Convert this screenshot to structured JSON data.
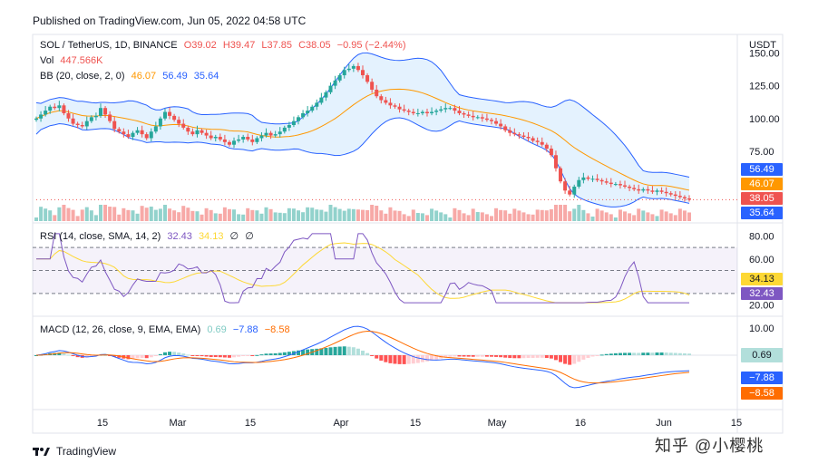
{
  "header": {
    "published": "Published on TradingView.com, Jun 05, 2022 04:58 UTC"
  },
  "legend": {
    "symbol": "SOL / TetherUS, 1D, BINANCE",
    "o": "O39.02",
    "h": "H39.47",
    "l": "L37.85",
    "c": "C38.05",
    "chg": "−0.95 (−2.44%)",
    "vol_label": "Vol",
    "vol_value": "447.566K",
    "bb_label": "BB (20, close, 2, 0)",
    "bb_basis": "46.07",
    "bb_upper": "56.49",
    "bb_lower": "35.64",
    "rsi_label": "RSI (14, close, SMA, 14, 2)",
    "rsi_value": "32.43",
    "rsi_ma": "34.13",
    "rsi_extra1": "∅",
    "rsi_extra2": "∅",
    "macd_label": "MACD (12, 26, close, 9, EMA, EMA)",
    "macd_hist": "0.69",
    "macd_line": "−7.88",
    "macd_signal": "−8.58"
  },
  "axis": {
    "currency": "USDT",
    "price_ticks": [
      "150.00",
      "125.00",
      "100.00",
      "75.00"
    ],
    "rsi_ticks": [
      "80.00",
      "60.00",
      "20.00"
    ],
    "macd_ticks": [
      "10.00"
    ],
    "time_ticks": [
      "15",
      "Mar",
      "15",
      "Apr",
      "15",
      "May",
      "16",
      "Jun",
      "15"
    ]
  },
  "price_tags": {
    "bb_upper": "56.49",
    "bb_basis": "46.07",
    "close": "38.05",
    "bb_lower": "35.64"
  },
  "rsi_tags": {
    "ma": "34.13",
    "rsi": "32.43"
  },
  "macd_tags": {
    "hist": "0.69",
    "macd": "−7.88",
    "signal": "−8.58"
  },
  "footer": {
    "brand": "TradingView"
  },
  "watermark": "知乎 @小樱桃",
  "colors": {
    "up": "#26a69a",
    "down": "#ef5350",
    "bb_band": "#2962ff",
    "bb_basis": "#ff9800",
    "rsi": "#7e57c2",
    "rsi_ma": "#fdd835",
    "macd": "#2962ff",
    "signal": "#ff6d00"
  },
  "chart_data": [
    {
      "type": "candlestick",
      "title": "SOL / TetherUS, 1D, BINANCE",
      "ylim": [
        30,
        160
      ],
      "x_labels": [
        "15",
        "Mar",
        "15",
        "Apr",
        "15",
        "May",
        "16",
        "Jun",
        "15"
      ],
      "close": [
        100,
        103,
        106,
        109,
        108,
        110,
        104,
        100,
        96,
        95,
        94,
        98,
        101,
        102,
        108,
        103,
        98,
        92,
        90,
        88,
        86,
        89,
        91,
        88,
        85,
        90,
        94,
        100,
        105,
        102,
        99,
        96,
        93,
        90,
        88,
        91,
        89,
        87,
        85,
        86,
        84,
        82,
        80,
        83,
        84,
        86,
        84,
        82,
        85,
        87,
        89,
        87,
        88,
        90,
        93,
        95,
        98,
        101,
        104,
        106,
        109,
        112,
        116,
        120,
        125,
        129,
        133,
        137,
        138,
        140,
        137,
        133,
        128,
        122,
        117,
        114,
        112,
        110,
        109,
        107,
        106,
        105,
        104,
        104,
        105,
        104,
        105,
        106,
        107,
        108,
        108,
        106,
        104,
        103,
        102,
        101,
        101,
        100,
        99,
        98,
        96,
        94,
        91,
        89,
        88,
        87,
        86,
        85,
        83,
        82,
        80,
        77,
        72,
        62,
        52,
        45,
        42,
        48,
        53,
        55,
        54,
        54,
        53,
        52,
        51,
        50,
        50,
        49,
        48,
        47,
        46,
        45,
        46,
        45,
        44,
        45,
        44,
        43,
        42,
        41,
        40,
        39,
        38.05
      ],
      "volume_note": "volume bars shown below price (not labeled)",
      "bollinger": {
        "basis_last": 46.07,
        "upper_last": 56.49,
        "lower_last": 35.64
      }
    },
    {
      "type": "line",
      "title": "RSI (14, close, SMA, 14, 2)",
      "ylim": [
        15,
        85
      ],
      "series": [
        {
          "name": "RSI",
          "last": 32.43
        },
        {
          "name": "MA",
          "last": 34.13
        }
      ],
      "levels": [
        70,
        50,
        30
      ]
    },
    {
      "type": "bar+line",
      "title": "MACD (12, 26, close, 9, EMA, EMA)",
      "ylim": [
        -14,
        13
      ],
      "series": [
        {
          "name": "Histogram",
          "last": 0.69
        },
        {
          "name": "MACD",
          "last": -7.88
        },
        {
          "name": "Signal",
          "last": -8.58
        }
      ]
    }
  ]
}
